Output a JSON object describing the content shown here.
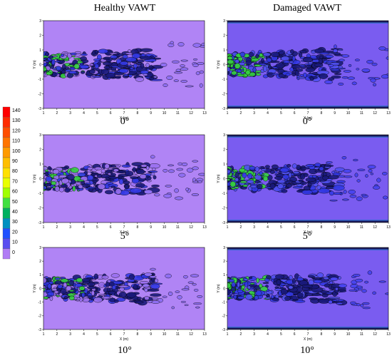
{
  "columns": [
    {
      "title": "Healthy VAWT"
    },
    {
      "title": "Damaged VAWT"
    }
  ],
  "angles": [
    "0°",
    "5°",
    "10°"
  ],
  "axis": {
    "xlabel": "X (m)",
    "ylabel": "Y (m)",
    "xticks": [
      "1",
      "2",
      "3",
      "4",
      "5",
      "6",
      "7",
      "8",
      "9",
      "10",
      "11",
      "12",
      "13"
    ],
    "yticks": [
      "3",
      "2",
      "1",
      "0",
      "-1",
      "-2",
      "-3"
    ]
  },
  "legend": {
    "ticks": [
      "140",
      "130",
      "120",
      "110",
      "100",
      "90",
      "80",
      "70",
      "60",
      "50",
      "40",
      "30",
      "20",
      "10",
      "0"
    ],
    "colors": [
      "#ff0000",
      "#ff2a00",
      "#ff4d00",
      "#ff7400",
      "#ff9a00",
      "#ffbe00",
      "#ffe000",
      "#e8ff00",
      "#a0ff00",
      "#40e040",
      "#00b060",
      "#0090c0",
      "#2050ff",
      "#5a4df0",
      "#b07cf5"
    ]
  },
  "colors": {
    "healthy_bg": "#b084f5",
    "damaged_bg": "#7a5cf0",
    "contour_dark": "#1a1a7a",
    "green": "#36d040",
    "blue": "#3338e6",
    "black": "#000000"
  }
}
